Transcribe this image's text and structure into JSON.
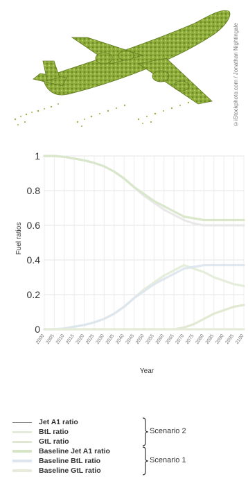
{
  "photo_credit": "©iStockphoto.com / Jonathan Nightingale",
  "chart_data": {
    "type": "line",
    "title": "",
    "xlabel": "Year",
    "ylabel": "Fuel ratios",
    "ylim": [
      0,
      1
    ],
    "yticks": [
      "0",
      "0.2",
      "0.4",
      "0.6",
      "0.8",
      "1"
    ],
    "x": [
      2000,
      2005,
      2010,
      2015,
      2020,
      2025,
      2030,
      2035,
      2040,
      2045,
      2050,
      2055,
      2060,
      2065,
      2070,
      2075,
      2080,
      2085,
      2090,
      2095,
      2100
    ],
    "x_tick_labels": [
      "2000",
      "2005",
      "2010",
      "2015",
      "2020",
      "2025",
      "2030",
      "2035",
      "2040",
      "2045",
      "2050",
      "2055",
      "2060",
      "2065",
      "2070",
      "2075",
      "2080",
      "2085",
      "2090",
      "2095",
      "2100"
    ],
    "grid": true,
    "series": [
      {
        "name": "Jet A1 ratio",
        "scenario": "Scenario 2",
        "color": "#e8e8e8",
        "values": [
          1.0,
          1.0,
          0.995,
          0.985,
          0.975,
          0.96,
          0.94,
          0.91,
          0.87,
          0.82,
          0.77,
          0.73,
          0.69,
          0.66,
          0.63,
          0.61,
          0.6,
          0.6,
          0.6,
          0.6,
          0.6
        ]
      },
      {
        "name": "BtL ratio",
        "scenario": "Scenario 2",
        "color": "#e4ecd9",
        "values": [
          0.0,
          0.0,
          0.005,
          0.015,
          0.025,
          0.04,
          0.06,
          0.09,
          0.13,
          0.18,
          0.23,
          0.27,
          0.31,
          0.34,
          0.37,
          0.35,
          0.33,
          0.3,
          0.28,
          0.26,
          0.25
        ]
      },
      {
        "name": "GtL ratio",
        "scenario": "Scenario 2",
        "color": "#dfe8d0",
        "values": [
          0.0,
          0.0,
          0.0,
          0.0,
          0.0,
          0.0,
          0.0,
          0.0,
          0.0,
          0.0,
          0.0,
          0.0,
          0.0,
          0.0,
          0.01,
          0.03,
          0.06,
          0.09,
          0.11,
          0.13,
          0.14
        ]
      },
      {
        "name": "Baseline Jet A1 ratio",
        "scenario": "Scenario 1",
        "color": "#d8e6c8",
        "values": [
          1.0,
          1.0,
          0.995,
          0.985,
          0.975,
          0.96,
          0.94,
          0.91,
          0.87,
          0.82,
          0.78,
          0.74,
          0.71,
          0.68,
          0.65,
          0.64,
          0.63,
          0.63,
          0.63,
          0.63,
          0.63
        ]
      },
      {
        "name": "Baseline BtL ratio",
        "scenario": "Scenario 1",
        "color": "#dde6ee",
        "values": [
          0.0,
          0.0,
          0.005,
          0.015,
          0.025,
          0.04,
          0.06,
          0.09,
          0.13,
          0.18,
          0.22,
          0.26,
          0.29,
          0.32,
          0.35,
          0.36,
          0.37,
          0.37,
          0.37,
          0.37,
          0.37
        ]
      },
      {
        "name": "Baseline GtL ratio",
        "scenario": "Scenario 1",
        "color": "#e6ecd9",
        "values": [
          0.0,
          0.0,
          0.0,
          0.0,
          0.0,
          0.0,
          0.0,
          0.0,
          0.0,
          0.0,
          0.0,
          0.0,
          0.0,
          0.0,
          0.0,
          0.0,
          0.0,
          0.0,
          0.0,
          0.0,
          0.0
        ]
      }
    ],
    "legend": {
      "placement": "bottom",
      "groups": [
        {
          "label": "Scenario 2",
          "items": [
            "Jet A1 ratio",
            "BtL ratio",
            "GtL ratio"
          ]
        },
        {
          "label": "Scenario 1",
          "items": [
            "Baseline Jet A1 ratio",
            "Baseline BtL ratio",
            "Baseline GtL ratio"
          ]
        }
      ]
    }
  }
}
